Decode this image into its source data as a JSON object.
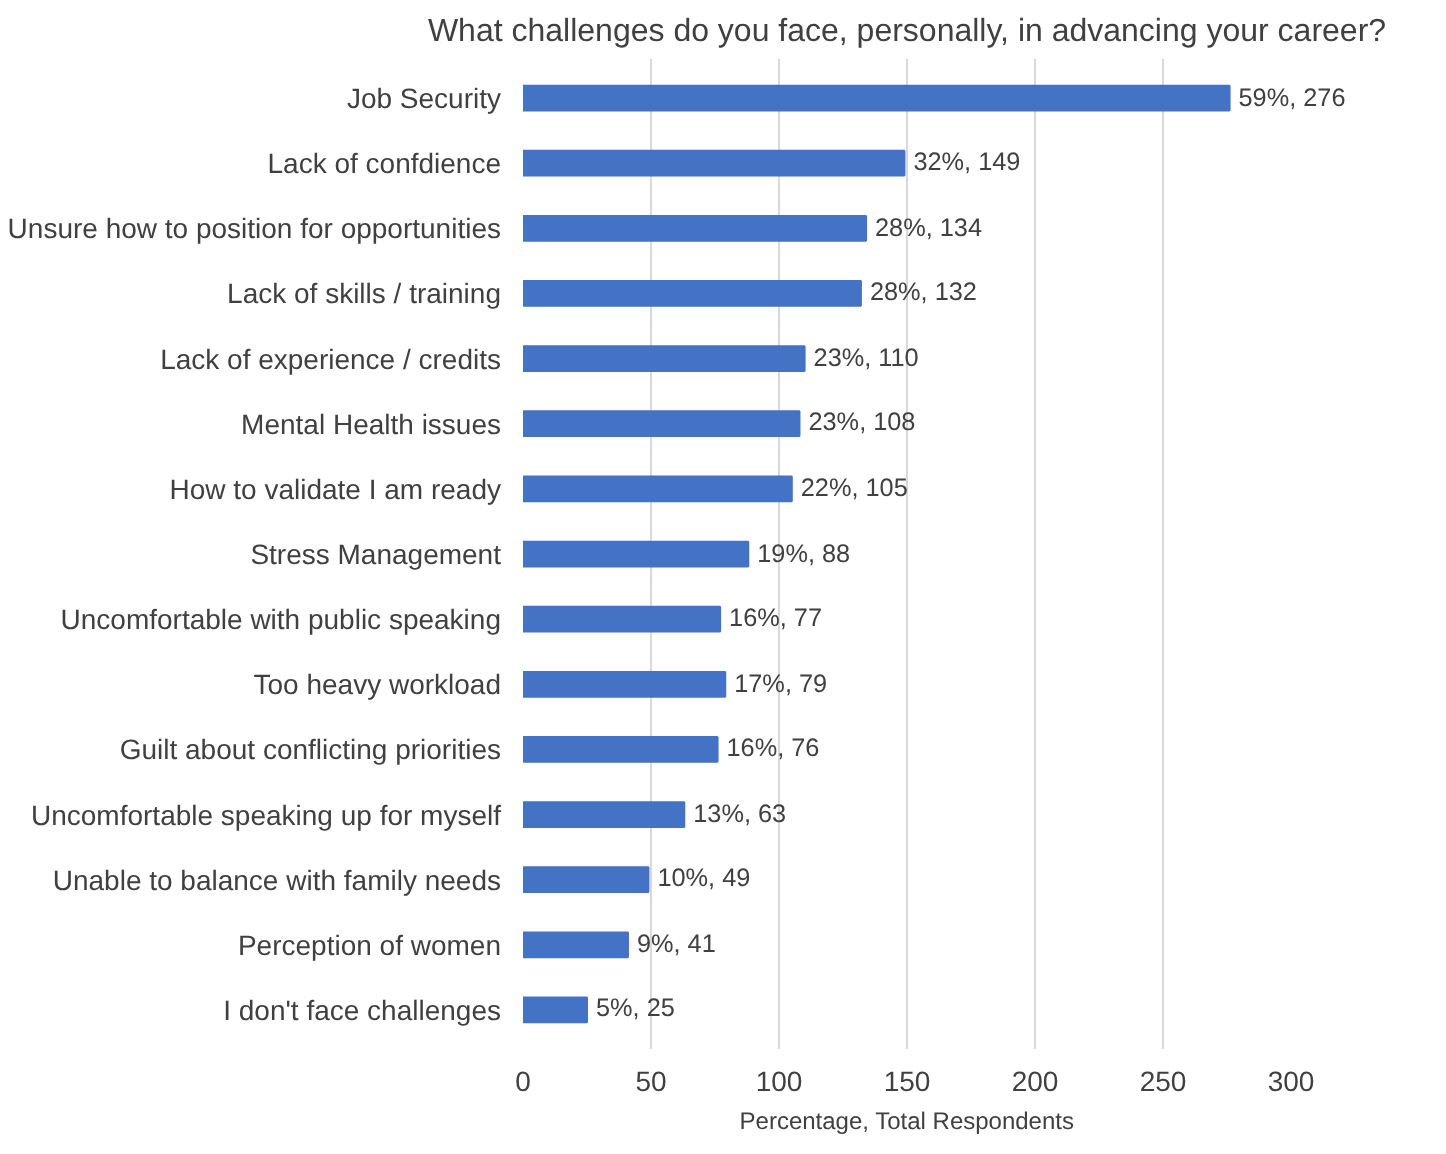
{
  "chart_data": {
    "type": "bar",
    "orientation": "horizontal",
    "title": "What challenges do you face, personally, in advancing your career?",
    "xlabel": "Percentage, Total Respondents",
    "categories": [
      "Job Security",
      "Lack of confdience",
      "Unsure how to position for opportunities",
      "Lack of skills / training",
      "Lack of experience / credits",
      "Mental Health issues",
      "How to validate I am ready",
      "Stress Management",
      "Uncomfortable with public speaking",
      "Too heavy workload",
      "Guilt about conflicting priorities",
      "Uncomfortable speaking up for myself",
      "Unable to balance with family needs",
      "Perception of women",
      "I don't face challenges"
    ],
    "values": [
      276,
      149,
      134,
      132,
      110,
      108,
      105,
      88,
      77,
      79,
      76,
      63,
      49,
      41,
      25
    ],
    "value_labels": [
      "59%, 276",
      "32%, 149",
      "28%, 134",
      "28%, 132",
      "23%, 110",
      "23%, 108",
      "22%, 105",
      "19%, 88",
      "16%, 77",
      "17%, 79",
      "16%, 76",
      "13%, 63",
      "10%, 49",
      "9%, 41",
      "5%, 25"
    ],
    "color": "#4472c4",
    "xlim": [
      0,
      300
    ],
    "xticks": [
      0,
      50,
      100,
      150,
      200,
      250,
      300
    ],
    "grid": "x"
  }
}
